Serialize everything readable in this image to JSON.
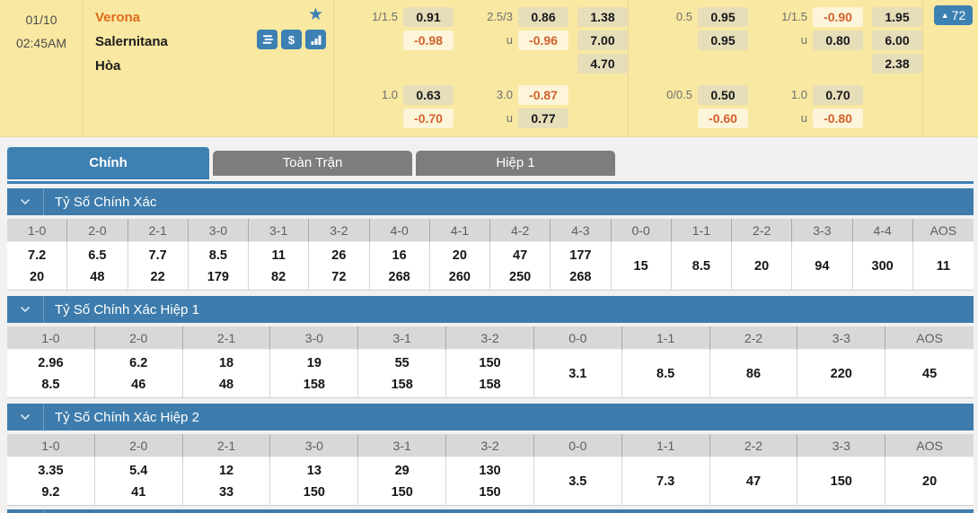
{
  "colors": {
    "brand_blue": "#3d80b2",
    "section_blue": "#3d7cac",
    "topbar_yellow": "#f9e8a1",
    "odds_positive_bg": "#e6ddb9",
    "odds_negative_bg": "#fdf5d9",
    "odds_negative_text": "#d1612e",
    "home_team_orange": "#df6b1b",
    "inactive_tab_gray": "#7d7d7d",
    "table_header_gray": "#d8d8d8"
  },
  "match": {
    "date": "01/10",
    "time": "02:45AM",
    "home_team": "Verona",
    "away_team": "Salernitana",
    "draw_label": "Hòa",
    "more_count": "72",
    "icons": [
      "star-icon",
      "stack-icon",
      "dollar-icon",
      "bar-chart-icon",
      "triangle-up-icon",
      "chevron-down-icon"
    ]
  },
  "odds_panels": [
    {
      "rows": [
        {
          "ah_label": "1/1.5",
          "ah": [
            {
              "v": "0.91",
              "neg": false
            },
            {
              "v": "-0.98",
              "neg": true
            }
          ],
          "ou_labels": [
            "2.5/3",
            "u"
          ],
          "ou": [
            {
              "v": "0.86",
              "neg": false
            },
            {
              "v": "-0.96",
              "neg": true
            }
          ],
          "x12": [
            "1.38",
            "7.00",
            "4.70"
          ]
        },
        {
          "ah_label": "1.0",
          "ah": [
            {
              "v": "0.63",
              "neg": false
            },
            {
              "v": "-0.70",
              "neg": true
            }
          ],
          "ou_labels": [
            "3.0",
            "u"
          ],
          "ou": [
            {
              "v": "-0.87",
              "neg": true
            },
            {
              "v": "0.77",
              "neg": false
            }
          ],
          "x12": []
        }
      ]
    },
    {
      "rows": [
        {
          "ah_label": "0.5",
          "ah": [
            {
              "v": "0.95",
              "neg": false
            },
            {
              "v": "0.95",
              "neg": false
            }
          ],
          "ou_labels": [
            "1/1.5",
            "u"
          ],
          "ou": [
            {
              "v": "-0.90",
              "neg": true
            },
            {
              "v": "0.80",
              "neg": false
            }
          ],
          "x12": [
            "1.95",
            "6.00",
            "2.38"
          ]
        },
        {
          "ah_label": "0/0.5",
          "ah": [
            {
              "v": "0.50",
              "neg": false
            },
            {
              "v": "-0.60",
              "neg": true
            }
          ],
          "ou_labels": [
            "1.0",
            "u"
          ],
          "ou": [
            {
              "v": "0.70",
              "neg": false
            },
            {
              "v": "-0.80",
              "neg": true
            }
          ],
          "x12": []
        }
      ]
    }
  ],
  "tabs": [
    {
      "label": "Chính",
      "active": true
    },
    {
      "label": "Toàn Trận",
      "active": false
    },
    {
      "label": "Hiệp 1",
      "active": false
    }
  ],
  "sections": [
    {
      "title": "Tỷ Số Chính Xác",
      "columns": [
        {
          "label": "1-0",
          "values": [
            "7.2",
            "20"
          ]
        },
        {
          "label": "2-0",
          "values": [
            "6.5",
            "48"
          ]
        },
        {
          "label": "2-1",
          "values": [
            "7.7",
            "22"
          ]
        },
        {
          "label": "3-0",
          "values": [
            "8.5",
            "179"
          ]
        },
        {
          "label": "3-1",
          "values": [
            "11",
            "82"
          ]
        },
        {
          "label": "3-2",
          "values": [
            "26",
            "72"
          ]
        },
        {
          "label": "4-0",
          "values": [
            "16",
            "268"
          ]
        },
        {
          "label": "4-1",
          "values": [
            "20",
            "260"
          ]
        },
        {
          "label": "4-2",
          "values": [
            "47",
            "250"
          ]
        },
        {
          "label": "4-3",
          "values": [
            "177",
            "268"
          ]
        },
        {
          "label": "0-0",
          "values": [
            "15"
          ]
        },
        {
          "label": "1-1",
          "values": [
            "8.5"
          ]
        },
        {
          "label": "2-2",
          "values": [
            "20"
          ]
        },
        {
          "label": "3-3",
          "values": [
            "94"
          ]
        },
        {
          "label": "4-4",
          "values": [
            "300"
          ]
        },
        {
          "label": "AOS",
          "values": [
            "11"
          ]
        }
      ]
    },
    {
      "title": "Tỷ Số Chính Xác Hiệp 1",
      "columns": [
        {
          "label": "1-0",
          "values": [
            "2.96",
            "8.5"
          ]
        },
        {
          "label": "2-0",
          "values": [
            "6.2",
            "46"
          ]
        },
        {
          "label": "2-1",
          "values": [
            "18",
            "48"
          ]
        },
        {
          "label": "3-0",
          "values": [
            "19",
            "158"
          ]
        },
        {
          "label": "3-1",
          "values": [
            "55",
            "158"
          ]
        },
        {
          "label": "3-2",
          "values": [
            "150",
            "158"
          ]
        },
        {
          "label": "0-0",
          "values": [
            "3.1"
          ]
        },
        {
          "label": "1-1",
          "values": [
            "8.5"
          ]
        },
        {
          "label": "2-2",
          "values": [
            "86"
          ]
        },
        {
          "label": "3-3",
          "values": [
            "220"
          ]
        },
        {
          "label": "AOS",
          "values": [
            "45"
          ]
        }
      ]
    },
    {
      "title": "Tỷ Số Chính Xác Hiệp 2",
      "columns": [
        {
          "label": "1-0",
          "values": [
            "3.35",
            "9.2"
          ]
        },
        {
          "label": "2-0",
          "values": [
            "5.4",
            "41"
          ]
        },
        {
          "label": "2-1",
          "values": [
            "12",
            "33"
          ]
        },
        {
          "label": "3-0",
          "values": [
            "13",
            "150"
          ]
        },
        {
          "label": "3-1",
          "values": [
            "29",
            "150"
          ]
        },
        {
          "label": "3-2",
          "values": [
            "130",
            "150"
          ]
        },
        {
          "label": "0-0",
          "values": [
            "3.5"
          ]
        },
        {
          "label": "1-1",
          "values": [
            "7.3"
          ]
        },
        {
          "label": "2-2",
          "values": [
            "47"
          ]
        },
        {
          "label": "3-3",
          "values": [
            "150"
          ]
        },
        {
          "label": "AOS",
          "values": [
            "20"
          ]
        }
      ]
    }
  ]
}
